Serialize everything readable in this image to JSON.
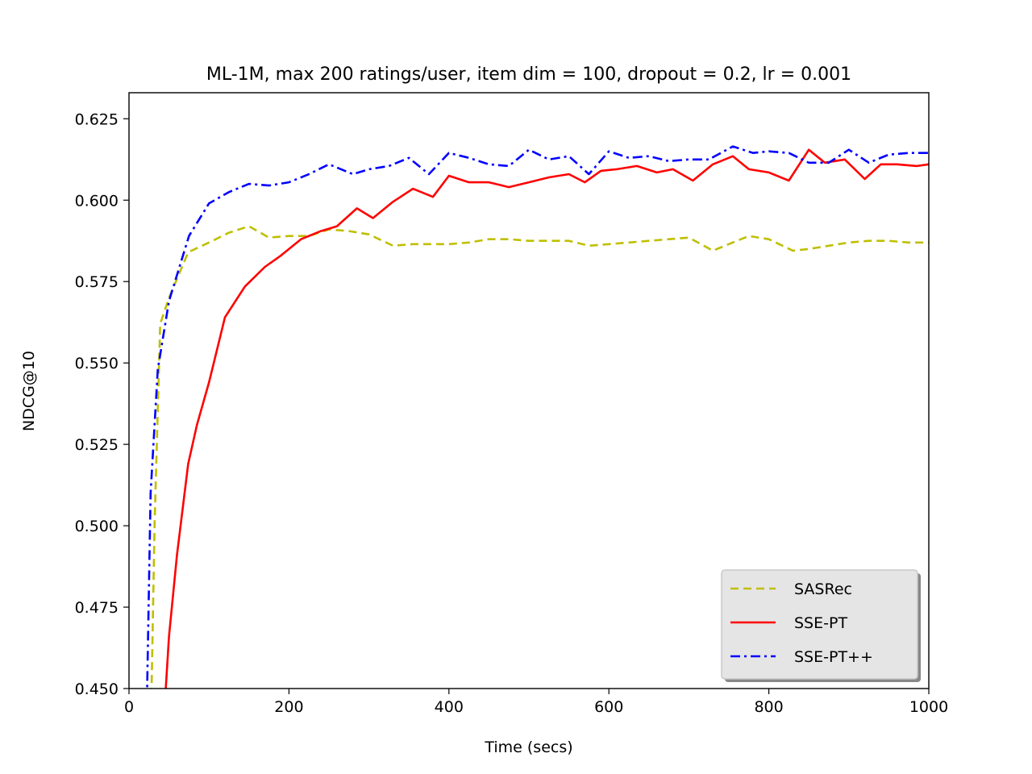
{
  "chart_data": {
    "type": "line",
    "title": "ML-1M, max 200 ratings/user, item dim = 100, dropout = 0.2, lr = 0.001",
    "xlabel": "Time (secs)",
    "ylabel": "NDCG@10",
    "xlim": [
      0,
      1000
    ],
    "ylim": [
      0.45,
      0.633
    ],
    "xticks": [
      0,
      200,
      400,
      600,
      800,
      1000
    ],
    "xtick_labels": [
      "0",
      "200",
      "400",
      "600",
      "800",
      "1000"
    ],
    "yticks": [
      0.45,
      0.475,
      0.5,
      0.525,
      0.55,
      0.575,
      0.6,
      0.625
    ],
    "ytick_labels": [
      "0.450",
      "0.475",
      "0.500",
      "0.525",
      "0.550",
      "0.575",
      "0.600",
      "0.625"
    ],
    "grid": false,
    "legend_position": "lower-right",
    "series": [
      {
        "name": "SASRec",
        "color": "#bfbf00",
        "style": "dashed",
        "x": [
          26,
          32,
          39,
          50,
          74,
          100,
          125,
          150,
          175,
          200,
          225,
          250,
          275,
          300,
          330,
          355,
          380,
          400,
          425,
          450,
          475,
          500,
          525,
          550,
          575,
          600,
          625,
          650,
          675,
          700,
          730,
          750,
          775,
          800,
          830,
          850,
          875,
          900,
          925,
          950,
          975,
          1000
        ],
        "y": [
          0.42,
          0.5,
          0.562,
          0.57,
          0.584,
          0.587,
          0.59,
          0.592,
          0.5885,
          0.589,
          0.589,
          0.591,
          0.5905,
          0.5895,
          0.586,
          0.5865,
          0.5865,
          0.5865,
          0.587,
          0.588,
          0.588,
          0.5875,
          0.5875,
          0.5875,
          0.586,
          0.5865,
          0.587,
          0.5875,
          0.588,
          0.5885,
          0.5845,
          0.5865,
          0.589,
          0.588,
          0.5845,
          0.585,
          0.586,
          0.587,
          0.5875,
          0.5875,
          0.587,
          0.587
        ]
      },
      {
        "name": "SSE-PT",
        "color": "#ff0000",
        "style": "solid",
        "x": [
          46,
          50,
          60,
          74,
          85,
          100,
          120,
          145,
          170,
          190,
          215,
          240,
          260,
          285,
          305,
          330,
          355,
          380,
          400,
          425,
          450,
          475,
          500,
          525,
          550,
          570,
          590,
          610,
          635,
          660,
          680,
          705,
          730,
          755,
          775,
          800,
          825,
          850,
          870,
          895,
          920,
          940,
          960,
          985,
          1000
        ],
        "y": [
          0.45,
          0.466,
          0.491,
          0.519,
          0.531,
          0.544,
          0.564,
          0.5735,
          0.5795,
          0.583,
          0.588,
          0.5905,
          0.592,
          0.5975,
          0.5945,
          0.5995,
          0.6035,
          0.601,
          0.6075,
          0.6055,
          0.6055,
          0.604,
          0.6055,
          0.607,
          0.608,
          0.6055,
          0.609,
          0.6095,
          0.6105,
          0.6085,
          0.6095,
          0.606,
          0.611,
          0.6135,
          0.6095,
          0.6085,
          0.606,
          0.6155,
          0.6115,
          0.6125,
          0.6065,
          0.611,
          0.611,
          0.6105,
          0.611
        ]
      },
      {
        "name": "SSE-PT++",
        "color": "#0000ff",
        "style": "dashdot",
        "x": [
          22,
          27,
          36,
          50,
          75,
          100,
          125,
          150,
          175,
          200,
          225,
          250,
          280,
          300,
          325,
          350,
          375,
          400,
          425,
          450,
          475,
          500,
          525,
          550,
          575,
          600,
          625,
          650,
          675,
          700,
          725,
          755,
          780,
          800,
          825,
          850,
          875,
          900,
          925,
          950,
          975,
          1000
        ],
        "y": [
          0.44,
          0.51,
          0.548,
          0.569,
          0.589,
          0.599,
          0.6025,
          0.605,
          0.6045,
          0.6055,
          0.608,
          0.611,
          0.608,
          0.6095,
          0.6105,
          0.613,
          0.608,
          0.6145,
          0.613,
          0.611,
          0.6105,
          0.6155,
          0.6125,
          0.6135,
          0.608,
          0.615,
          0.613,
          0.6135,
          0.612,
          0.6125,
          0.6125,
          0.6165,
          0.6145,
          0.615,
          0.6145,
          0.6115,
          0.6115,
          0.6155,
          0.6115,
          0.614,
          0.6145,
          0.6145
        ]
      }
    ]
  }
}
